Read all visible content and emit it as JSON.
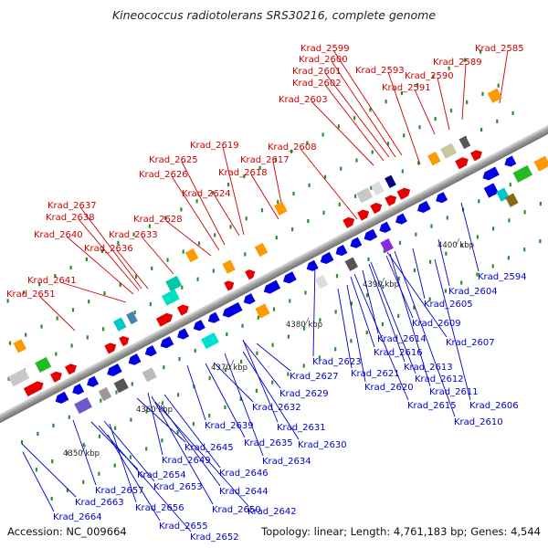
{
  "title": "Kineococcus radiotolerans SRS30216, complete genome",
  "accession": "Accession: NC_009664",
  "topology": "Topology: linear; Length: 4,761,183 bp; Genes: 4,544",
  "colors": {
    "forward_label": "#cc0000",
    "reverse_label": "#0000cc",
    "backbone": "#a6a6a6"
  },
  "scale_labels": [
    "4350 kbp",
    "4360 kbp",
    "4370 kbp",
    "4380 kbp",
    "4390 kbp",
    "4400 kbp"
  ],
  "forward_genes": [
    "Krad_2651",
    "Krad_2641",
    "Krad_2640",
    "Krad_2638",
    "Krad_2637",
    "Krad_2636",
    "Krad_2633",
    "Krad_2628",
    "Krad_2626",
    "Krad_2625",
    "Krad_2624",
    "Krad_2619",
    "Krad_2618",
    "Krad_2617",
    "Krad_2608",
    "Krad_2603",
    "Krad_2602",
    "Krad_2601",
    "Krad_2600",
    "Krad_2599",
    "Krad_2593",
    "Krad_2591",
    "Krad_2590",
    "Krad_2589",
    "Krad_2585"
  ],
  "reverse_genes": [
    "Krad_2664",
    "Krad_2663",
    "Krad_2657",
    "Krad_2656",
    "Krad_2655",
    "Krad_2654",
    "Krad_2653",
    "Krad_2652",
    "Krad_2650",
    "Krad_2649",
    "Krad_2646",
    "Krad_2645",
    "Krad_2644",
    "Krad_2642",
    "Krad_2639",
    "Krad_2635",
    "Krad_2634",
    "Krad_2632",
    "Krad_2631",
    "Krad_2630",
    "Krad_2629",
    "Krad_2627",
    "Krad_2623",
    "Krad_2621",
    "Krad_2620",
    "Krad_2616",
    "Krad_2615",
    "Krad_2614",
    "Krad_2613",
    "Krad_2612",
    "Krad_2611",
    "Krad_2610",
    "Krad_2609",
    "Krad_2607",
    "Krad_2606",
    "Krad_2605",
    "Krad_2604",
    "Krad_2594"
  ]
}
